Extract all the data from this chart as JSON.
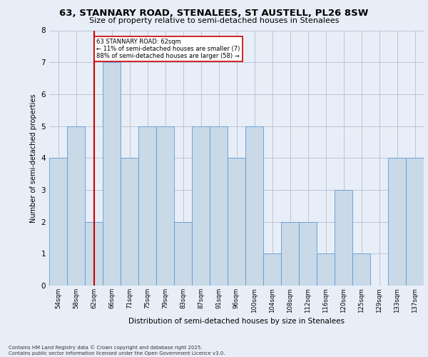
{
  "title_line1": "63, STANNARY ROAD, STENALEES, ST AUSTELL, PL26 8SW",
  "title_line2": "Size of property relative to semi-detached houses in Stenalees",
  "xlabel": "Distribution of semi-detached houses by size in Stenalees",
  "ylabel": "Number of semi-detached properties",
  "footer_line1": "Contains HM Land Registry data © Crown copyright and database right 2025.",
  "footer_line2": "Contains public sector information licensed under the Open Government Licence v3.0.",
  "annotation_line1": "63 STANNARY ROAD: 62sqm",
  "annotation_line2": "← 11% of semi-detached houses are smaller (7)",
  "annotation_line3": "88% of semi-detached houses are larger (58) →",
  "bar_color": "#c9d9e8",
  "bar_edge_color": "#5b9bd5",
  "subject_line_color": "#cc0000",
  "annotation_box_color": "#cc0000",
  "background_color": "#e8eef7",
  "labels": [
    "54sqm",
    "58sqm",
    "62sqm",
    "66sqm",
    "71sqm",
    "75sqm",
    "79sqm",
    "83sqm",
    "87sqm",
    "91sqm",
    "96sqm",
    "100sqm",
    "104sqm",
    "108sqm",
    "112sqm",
    "116sqm",
    "120sqm",
    "125sqm",
    "129sqm",
    "133sqm",
    "137sqm"
  ],
  "values": [
    4,
    5,
    2,
    7,
    4,
    5,
    5,
    2,
    5,
    5,
    4,
    5,
    1,
    2,
    2,
    1,
    3,
    1,
    0,
    4,
    4
  ],
  "ylim": [
    0,
    8
  ],
  "yticks": [
    0,
    1,
    2,
    3,
    4,
    5,
    6,
    7,
    8
  ],
  "subject_label": "62sqm"
}
